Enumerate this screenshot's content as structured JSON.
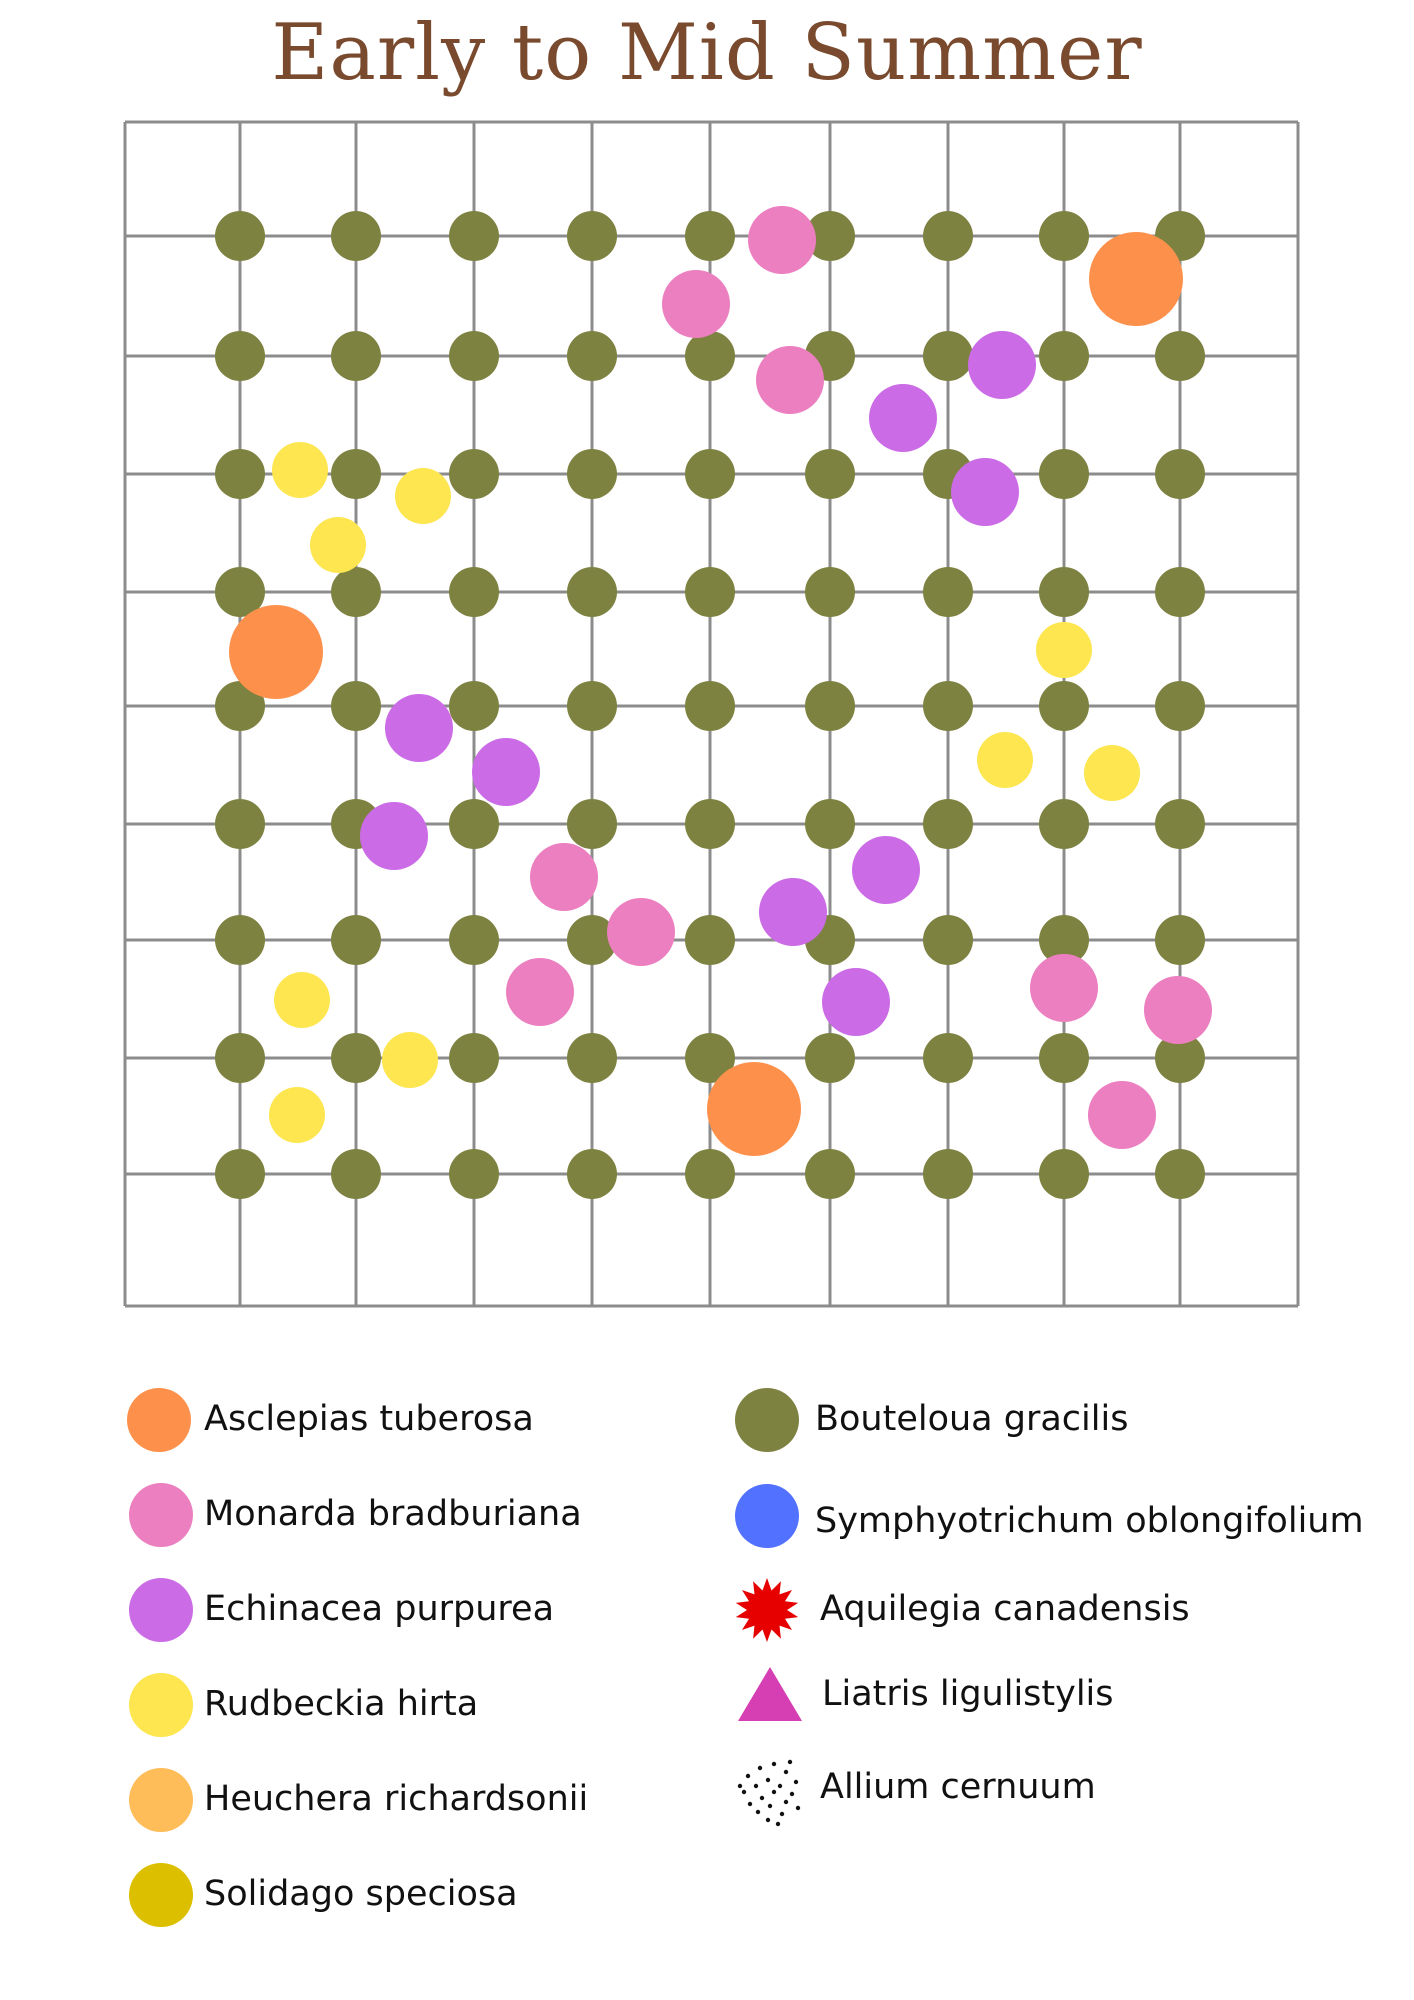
{
  "title": "Early to Mid Summer",
  "colors": {
    "grid": "#8c8c8c",
    "title": "#7a4a2e"
  },
  "species": [
    {
      "id": "asclepias",
      "label": "Asclepias tuberosa",
      "shape": "circle",
      "color": "#fd914c"
    },
    {
      "id": "monarda",
      "label": "Monarda bradburiana",
      "shape": "circle",
      "color": "#ec7fc0"
    },
    {
      "id": "echinacea",
      "label": "Echinacea purpurea",
      "shape": "circle",
      "color": "#cb6ce6"
    },
    {
      "id": "rudbeckia",
      "label": "Rudbeckia hirta",
      "shape": "circle",
      "color": "#fde64f"
    },
    {
      "id": "heuchera",
      "label": "Heuchera richardsonii",
      "shape": "circle",
      "color": "#ffbd59"
    },
    {
      "id": "solidago",
      "label": "Solidago speciosa",
      "shape": "circle",
      "color": "#dcc000"
    },
    {
      "id": "bouteloua",
      "label": "Bouteloua gracilis",
      "shape": "circle",
      "color": "#7e8241"
    },
    {
      "id": "symphyotrichum",
      "label": "Symphyotrichum oblongifolium",
      "shape": "circle",
      "color": "#5271ff"
    },
    {
      "id": "aquilegia",
      "label": "Aquilegia canadensis",
      "shape": "starburst",
      "color": "#e60000"
    },
    {
      "id": "liatris",
      "label": "Liatris ligulistylis",
      "shape": "triangle",
      "color": "#d63fb4"
    },
    {
      "id": "allium",
      "label": "Allium cernuum",
      "shape": "dots",
      "color": "#111111"
    }
  ]
}
